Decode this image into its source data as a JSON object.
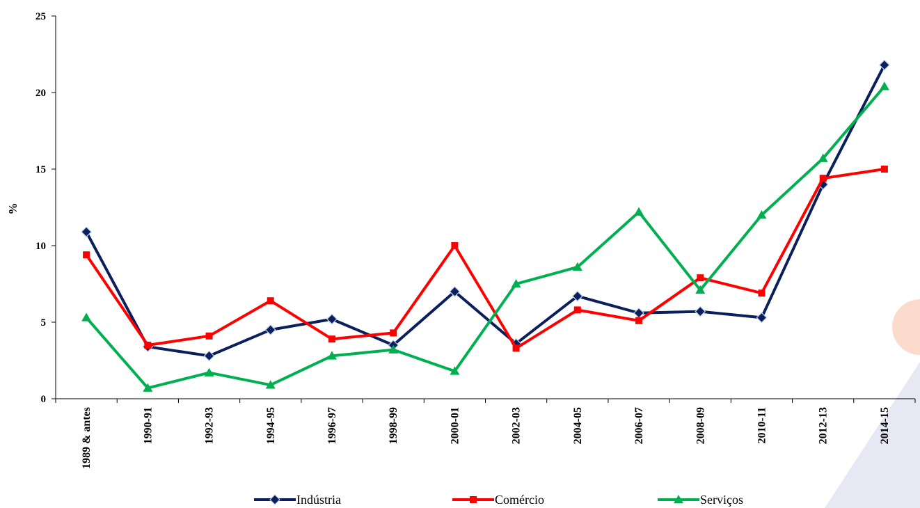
{
  "chart_data": {
    "type": "line",
    "title": "",
    "xlabel": "",
    "ylabel": "%",
    "ylim": [
      0,
      25
    ],
    "yticks": [
      "0",
      "5",
      "10",
      "15",
      "20",
      "25"
    ],
    "grid": false,
    "legend_position": "bottom",
    "categories": [
      "1989 & antes",
      "1990-91",
      "1992-93",
      "1994-95",
      "1996-97",
      "1998-99",
      "2000-01",
      "2002-03",
      "2004-05",
      "2006-07",
      "2008-09",
      "2010-11",
      "2012-13",
      "2014-15"
    ],
    "series": [
      {
        "name": "Indústria",
        "color": "#0a1f5c",
        "marker": "diamond",
        "values": [
          10.9,
          3.4,
          2.8,
          4.5,
          5.2,
          3.5,
          7.0,
          3.6,
          6.7,
          5.6,
          5.7,
          5.3,
          14.0,
          21.8
        ]
      },
      {
        "name": "Comércio",
        "color": "#ff0000",
        "marker": "square",
        "values": [
          9.4,
          3.5,
          4.1,
          6.4,
          3.9,
          4.3,
          10.0,
          3.3,
          5.8,
          5.1,
          7.9,
          6.9,
          14.4,
          15.0
        ]
      },
      {
        "name": "Serviços",
        "color": "#00b050",
        "marker": "triangle",
        "values": [
          5.3,
          0.7,
          1.7,
          0.9,
          2.8,
          3.2,
          1.8,
          7.5,
          8.6,
          12.2,
          7.1,
          12.0,
          15.7,
          20.4
        ]
      }
    ]
  }
}
